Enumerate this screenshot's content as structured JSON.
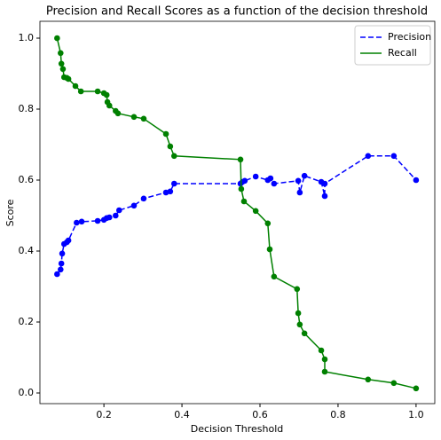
{
  "chart_data": {
    "type": "line",
    "title": "Precision and Recall Scores as a function of the decision threshold",
    "x_label": "Decision Threshold",
    "y_label": "Score",
    "xlim": [
      0.036,
      1.048
    ],
    "ylim": [
      -0.03,
      1.0475
    ],
    "xticks": [
      0.2,
      0.4,
      0.6,
      0.8,
      {
        "value": 1.0,
        "label": "1.0"
      }
    ],
    "yticks": [
      {
        "value": 0,
        "label": "0.0"
      },
      0.2,
      0.4,
      0.6,
      0.8,
      {
        "value": 1.0,
        "label": "1.0"
      }
    ],
    "legend": "upper right",
    "markers": true,
    "series": [
      {
        "name": "Precision",
        "color": "#0000ff",
        "style": "dashed",
        "x": [
          0.08,
          0.089,
          0.091,
          0.093,
          0.098,
          0.105,
          0.109,
          0.13,
          0.143,
          0.184,
          0.2,
          0.207,
          0.214,
          0.23,
          0.239,
          0.277,
          0.302,
          0.359,
          0.37,
          0.38,
          0.55,
          0.555,
          0.561,
          0.589,
          0.62,
          0.627,
          0.636,
          0.698,
          0.702,
          0.714,
          0.757,
          0.766,
          0.766,
          0.877,
          0.943,
          1.0
        ],
        "values": [
          0.335,
          0.348,
          0.365,
          0.393,
          0.42,
          0.425,
          0.43,
          0.48,
          0.483,
          0.485,
          0.488,
          0.493,
          0.495,
          0.5,
          0.515,
          0.528,
          0.548,
          0.565,
          0.568,
          0.59,
          0.59,
          0.595,
          0.598,
          0.61,
          0.6,
          0.605,
          0.59,
          0.598,
          0.565,
          0.612,
          0.595,
          0.555,
          0.59,
          0.668,
          0.668,
          0.6
        ]
      },
      {
        "name": "Recall",
        "color": "#008000",
        "style": "solid",
        "x": [
          0.08,
          0.089,
          0.091,
          0.095,
          0.098,
          0.105,
          0.109,
          0.127,
          0.141,
          0.184,
          0.2,
          0.207,
          0.209,
          0.214,
          0.23,
          0.236,
          0.277,
          0.302,
          0.359,
          0.37,
          0.38,
          0.55,
          0.552,
          0.559,
          0.589,
          0.62,
          0.625,
          0.636,
          0.695,
          0.698,
          0.702,
          0.714,
          0.757,
          0.766,
          0.766,
          0.877,
          0.943,
          1.0
        ],
        "values": [
          1.0,
          0.958,
          0.928,
          0.913,
          0.89,
          0.888,
          0.885,
          0.865,
          0.85,
          0.85,
          0.845,
          0.84,
          0.82,
          0.81,
          0.795,
          0.788,
          0.778,
          0.773,
          0.73,
          0.695,
          0.668,
          0.658,
          0.575,
          0.54,
          0.513,
          0.478,
          0.405,
          0.328,
          0.293,
          0.225,
          0.193,
          0.168,
          0.12,
          0.095,
          0.06,
          0.038,
          0.028,
          0.013
        ]
      }
    ]
  }
}
